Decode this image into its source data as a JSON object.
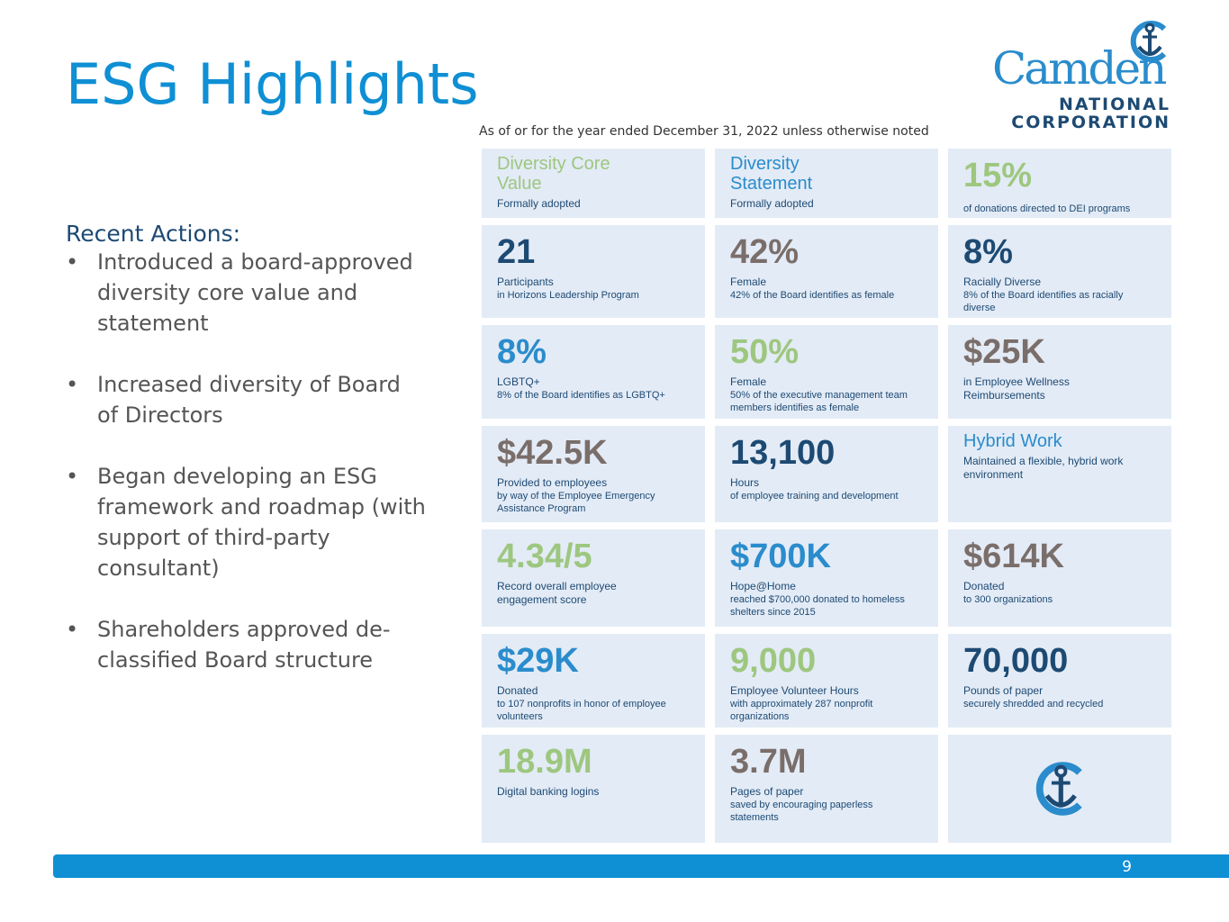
{
  "title": "ESG Highlights",
  "logo": {
    "name": "Camden",
    "sub1": "NATIONAL",
    "sub2": "CORPORATION"
  },
  "note": "As of or for the year ended December 31, 2022 unless otherwise noted",
  "recent": {
    "heading": "Recent Actions:",
    "items": [
      "Introduced a board-approved diversity core value and statement",
      "Increased diversity of Board of Directors",
      "Began developing an ESG framework and roadmap (with support of third-party consultant)",
      "Shareholders approved de-classified Board structure"
    ]
  },
  "tiles": [
    {
      "value": "Diversity Core Value",
      "label": "Formally adopted",
      "sub": "",
      "color": "green",
      "kind": "title"
    },
    {
      "value": "Diversity Statement",
      "label": "Formally adopted",
      "sub": "",
      "color": "blue",
      "kind": "title"
    },
    {
      "value": "15%",
      "label": "",
      "sub": "of donations directed to DEI programs",
      "color": "green"
    },
    {
      "value": "21",
      "label": "Participants",
      "sub": "in Horizons Leadership Program",
      "color": "navy"
    },
    {
      "value": "42%",
      "label": "Female",
      "sub": "42% of the Board identifies as female",
      "color": "gray"
    },
    {
      "value": "8%",
      "label": "Racially Diverse",
      "sub": "8% of the Board identifies as racially diverse",
      "color": "navy"
    },
    {
      "value": "8%",
      "label": "LGBTQ+",
      "sub": "8% of the Board identifies as LGBTQ+",
      "color": "blue"
    },
    {
      "value": "50%",
      "label": "Female",
      "sub": "50% of the executive management team members identifies as female",
      "color": "green"
    },
    {
      "value": "$25K",
      "label": "in Employee Wellness Reimbursements",
      "sub": "",
      "color": "gray"
    },
    {
      "value": "$42.5K",
      "label": "Provided to employees",
      "sub": "by way of the Employee Emergency Assistance Program",
      "color": "gray"
    },
    {
      "value": "13,100",
      "label": "Hours",
      "sub": "of employee training and development",
      "color": "navy"
    },
    {
      "value": "Hybrid Work",
      "label": "Maintained a flexible, hybrid work environment",
      "sub": "",
      "color": "blue",
      "kind": "title"
    },
    {
      "value": "4.34/5",
      "label": "Record overall employee engagement score",
      "sub": "",
      "color": "green"
    },
    {
      "value": "$700K",
      "label": "Hope@Home",
      "sub": "reached $700,000 donated to homeless shelters since 2015",
      "color": "blue"
    },
    {
      "value": "$614K",
      "label": "Donated",
      "sub": "to 300 organizations",
      "color": "gray"
    },
    {
      "value": "$29K",
      "label": "Donated",
      "sub": "to 107 nonprofits in honor of employee volunteers",
      "color": "blue"
    },
    {
      "value": "9,000",
      "label": "Employee Volunteer Hours",
      "sub": "with approximately 287 nonprofit organizations",
      "color": "green"
    },
    {
      "value": "70,000",
      "label": "Pounds of paper",
      "sub": "securely shredded and recycled",
      "color": "navy"
    },
    {
      "value": "18.9M",
      "label": "Digital banking logins",
      "sub": "",
      "color": "green"
    },
    {
      "value": "3.7M",
      "label": "Pages of paper",
      "sub": "saved by encouraging paperless statements",
      "color": "gray"
    }
  ],
  "page_number": "9"
}
